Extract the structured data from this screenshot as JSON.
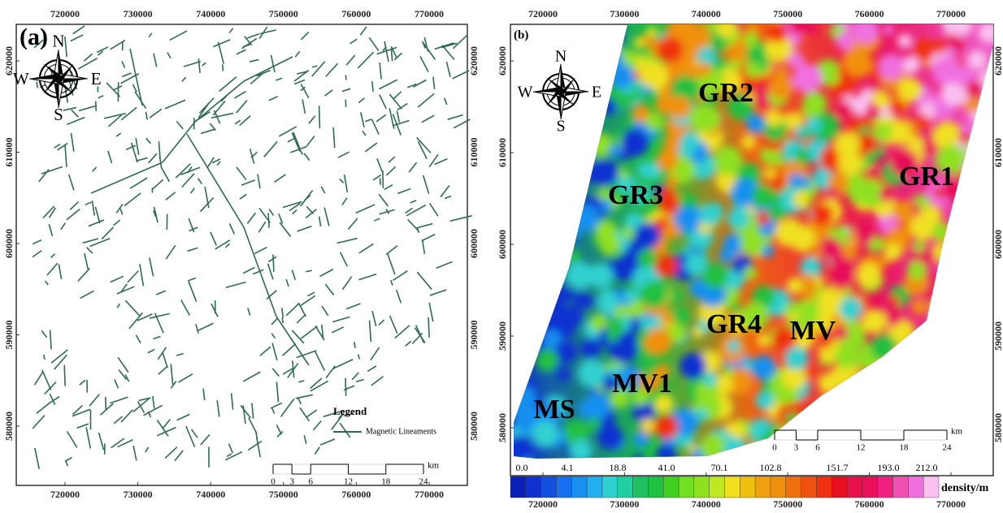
{
  "panel_a": {
    "label": "(a)",
    "compass": {
      "n": "N",
      "s": "S",
      "e": "E",
      "w": "W"
    },
    "xticks": [
      720000,
      730000,
      740000,
      750000,
      760000,
      770000
    ],
    "yticks": [
      580000,
      590000,
      600000,
      610000,
      620000
    ],
    "legend": {
      "title": "Legend",
      "item": "Magnetic Lineaments"
    },
    "scale_bar": {
      "ticks": [
        0,
        3,
        6,
        12,
        18,
        24
      ],
      "unit": "km"
    }
  },
  "panel_b": {
    "label": "(b)",
    "compass": {
      "n": "N",
      "s": "S",
      "e": "E",
      "w": "W"
    },
    "xticks": [
      720000,
      730000,
      740000,
      750000,
      760000,
      770000
    ],
    "yticks": [
      580000,
      590000,
      600000,
      610000,
      620000
    ],
    "zones": [
      "GR2",
      "GR1",
      "GR3",
      "GR4",
      "MV",
      "MV1",
      "MS"
    ],
    "colorbar": {
      "labels": [
        "0.0",
        "4.1",
        "18.8",
        "41.0",
        "70.1",
        "102.8",
        "151.7",
        "193.0",
        "212.0"
      ],
      "unit": "density/m"
    },
    "scale_bar": {
      "ticks": [
        0,
        3,
        6,
        12,
        18,
        24
      ],
      "unit": "km"
    }
  }
}
